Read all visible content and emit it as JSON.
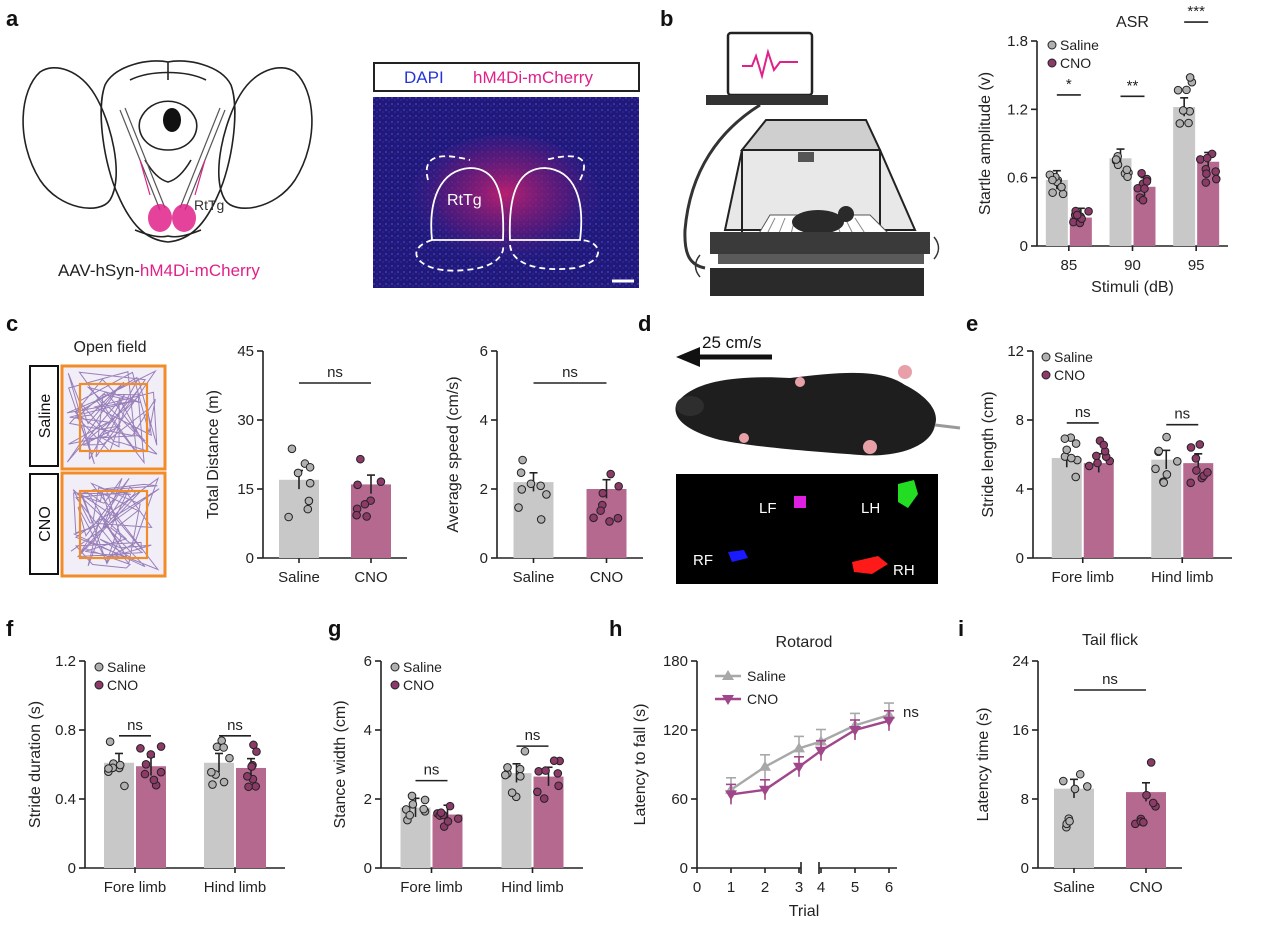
{
  "colors": {
    "saline_bar": "#c8c8c8",
    "cno_bar": "#b5698f",
    "saline_dot": "#b0b0b0",
    "cno_dot": "#8c3a68",
    "magenta": "#e0218a",
    "orange": "#f28c28",
    "purple_track": "#7b5aa6",
    "micro_blue": "#2a1f8f"
  },
  "panel_a": {
    "letter": "a",
    "region_label": "RtTg",
    "virus_prefix": "AAV-hSyn-",
    "virus_suffix": "hM4Di-mCherry",
    "stain_dapi": "DAPI",
    "stain_mcherry": "hM4Di-mCherry",
    "micro_region_label": "RtTg"
  },
  "panel_b": {
    "letter": "b",
    "chart_data": {
      "type": "bar",
      "title": "ASR",
      "xlabel": "Stimuli (dB)",
      "ylabel": "Startle amplitude (v)",
      "categories": [
        "85",
        "90",
        "95"
      ],
      "ylim": [
        0,
        1.8
      ],
      "yticks": [
        "0",
        "0.6",
        "1.2",
        "1.8"
      ],
      "legend": [
        "Saline",
        "CNO"
      ],
      "series": [
        {
          "name": "Saline",
          "values": [
            0.58,
            0.77,
            1.22
          ]
        },
        {
          "name": "CNO",
          "values": [
            0.25,
            0.52,
            0.74
          ]
        }
      ],
      "significance": [
        "*",
        "**",
        "***"
      ]
    }
  },
  "panel_c": {
    "letter": "c",
    "open_field_title": "Open field",
    "label_saline": "Saline",
    "label_cno": "CNO",
    "chart_distance": {
      "type": "bar",
      "ylabel": "Total Distance (m)",
      "categories": [
        "Saline",
        "CNO"
      ],
      "values": [
        17,
        16
      ],
      "ylim": [
        0,
        45
      ],
      "yticks": [
        "0",
        "15",
        "30",
        "45"
      ],
      "significance": "ns"
    },
    "chart_speed": {
      "type": "bar",
      "ylabel": "Average speed (cm/s)",
      "categories": [
        "Saline",
        "CNO"
      ],
      "values": [
        2.2,
        2.0
      ],
      "ylim": [
        0,
        6
      ],
      "yticks": [
        "0",
        "2",
        "4",
        "6"
      ],
      "significance": "ns"
    }
  },
  "panel_d": {
    "letter": "d",
    "speed_label": "25 cm/s",
    "paws": [
      "LF",
      "LH",
      "RF",
      "RH"
    ]
  },
  "chart_data": [
    {
      "id": "e",
      "type": "bar",
      "ylabel": "Stride length (cm)",
      "categories": [
        "Fore limb",
        "Hind limb"
      ],
      "ylim": [
        0,
        12
      ],
      "yticks": [
        "0",
        "4",
        "8",
        "12"
      ],
      "legend": [
        "Saline",
        "CNO"
      ],
      "series": [
        {
          "name": "Saline",
          "values": [
            5.8,
            5.7
          ]
        },
        {
          "name": "CNO",
          "values": [
            5.5,
            5.5
          ]
        }
      ],
      "significance": [
        "ns",
        "ns"
      ]
    },
    {
      "id": "f",
      "type": "bar",
      "ylabel": "Stride  duration (s)",
      "categories": [
        "Fore limb",
        "Hind limb"
      ],
      "ylim": [
        0,
        1.2
      ],
      "yticks": [
        "0",
        "0.4",
        "0.8",
        "1.2"
      ],
      "legend": [
        "Saline",
        "CNO"
      ],
      "series": [
        {
          "name": "Saline",
          "values": [
            0.61,
            0.61
          ]
        },
        {
          "name": "CNO",
          "values": [
            0.59,
            0.58
          ]
        }
      ],
      "significance": [
        "ns",
        "ns"
      ]
    },
    {
      "id": "g",
      "type": "bar",
      "ylabel": "Stance  width (cm)",
      "categories": [
        "Fore limb",
        "Hind limb"
      ],
      "ylim": [
        0,
        6
      ],
      "yticks": [
        "0",
        "2",
        "4",
        "6"
      ],
      "legend": [
        "Saline",
        "CNO"
      ],
      "series": [
        {
          "name": "Saline",
          "values": [
            1.75,
            2.75
          ]
        },
        {
          "name": "CNO",
          "values": [
            1.55,
            2.65
          ]
        }
      ],
      "significance": [
        "ns",
        "ns"
      ]
    },
    {
      "id": "h",
      "type": "line",
      "title": "Rotarod",
      "xlabel": "Trial",
      "ylabel": "Latency to fall (s)",
      "x": [
        1,
        2,
        3,
        4,
        5,
        6
      ],
      "xticks": [
        "0",
        "1",
        "2",
        "3",
        "4",
        "5",
        "6"
      ],
      "ylim": [
        0,
        180
      ],
      "yticks": [
        "0",
        "60",
        "120",
        "180"
      ],
      "legend": [
        "Saline",
        "CNO"
      ],
      "series": [
        {
          "name": "Saline",
          "values": [
            68,
            88,
            104,
            110,
            124,
            133
          ]
        },
        {
          "name": "CNO",
          "values": [
            64,
            68,
            88,
            102,
            120,
            128
          ]
        }
      ],
      "significance": "ns"
    },
    {
      "id": "i",
      "type": "bar",
      "title": "Tail flick",
      "ylabel": "Latency time (s)",
      "categories": [
        "Saline",
        "CNO"
      ],
      "values": [
        9.2,
        8.8
      ],
      "ylim": [
        0,
        24
      ],
      "yticks": [
        "0",
        "8",
        "16",
        "24"
      ],
      "significance": "ns"
    }
  ]
}
